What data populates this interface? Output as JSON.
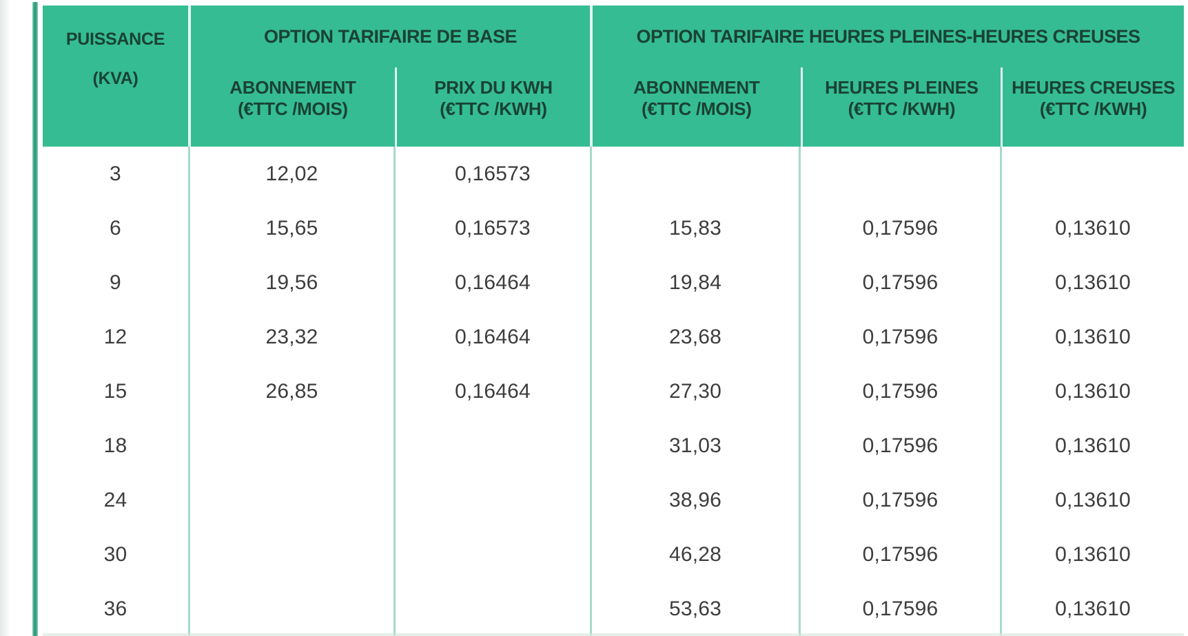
{
  "colors": {
    "header_green": "#35bc93",
    "accent_bar_green": "#2f9f7d",
    "header_text": "#1a4233",
    "body_text": "#3d3d3d",
    "header_divider": "#e4f6ef",
    "body_divider": "#a6dac6"
  },
  "chart_data": {
    "type": "table",
    "corner_header": {
      "line1": "PUISSANCE",
      "line2": "(KVA)"
    },
    "groups": [
      {
        "title": "OPTION TARIFAIRE DE BASE",
        "subheaders": [
          {
            "line1": "ABONNEMENT",
            "line2": "(€TTC /MOIS)"
          },
          {
            "line1": "PRIX DU KWH",
            "line2": "(€TTC /KWH)"
          }
        ]
      },
      {
        "title": "OPTION TARIFAIRE HEURES PLEINES-HEURES CREUSES",
        "subheaders": [
          {
            "line1": "ABONNEMENT",
            "line2": "(€TTC /MOIS)"
          },
          {
            "line1": "HEURES PLEINES",
            "line2": "(€TTC /KWH)"
          },
          {
            "line1": "HEURES CREUSES",
            "line2": "(€TTC /KWH)"
          }
        ]
      }
    ],
    "rows": [
      [
        "3",
        "12,02",
        "0,16573",
        "",
        "",
        ""
      ],
      [
        "6",
        "15,65",
        "0,16573",
        "15,83",
        "0,17596",
        "0,13610"
      ],
      [
        "9",
        "19,56",
        "0,16464",
        "19,84",
        "0,17596",
        "0,13610"
      ],
      [
        "12",
        "23,32",
        "0,16464",
        "23,68",
        "0,17596",
        "0,13610"
      ],
      [
        "15",
        "26,85",
        "0,16464",
        "27,30",
        "0,17596",
        "0,13610"
      ],
      [
        "18",
        "",
        "",
        "31,03",
        "0,17596",
        "0,13610"
      ],
      [
        "24",
        "",
        "",
        "38,96",
        "0,17596",
        "0,13610"
      ],
      [
        "30",
        "",
        "",
        "46,28",
        "0,17596",
        "0,13610"
      ],
      [
        "36",
        "",
        "",
        "53,63",
        "0,17596",
        "0,13610"
      ]
    ],
    "layout_hints": {
      "header_background": "#35bc93",
      "row_count_visible": 9,
      "table_cut_off_bottom": true,
      "table_cut_off_right": true
    }
  }
}
